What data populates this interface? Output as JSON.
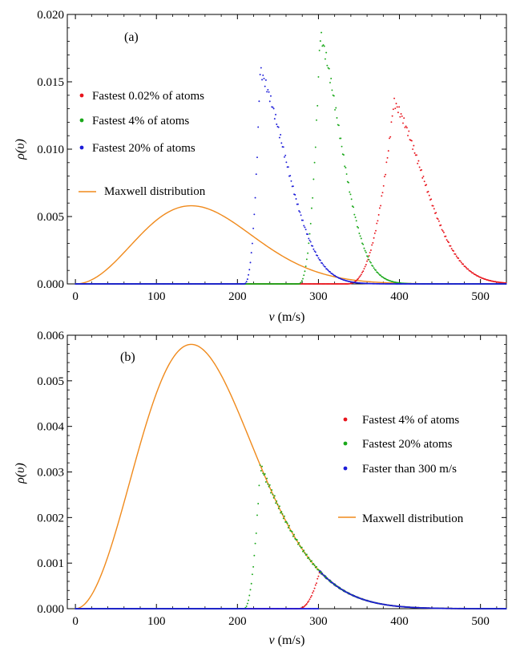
{
  "chart_data": [
    {
      "type": "scatter",
      "panel_label": "(a)",
      "xlabel_var": "v",
      "xlabel_unit": " (m/s)",
      "ylabel": "ρ(υ)",
      "xlim": [
        -10,
        532
      ],
      "ylim": [
        0,
        0.02
      ],
      "xticks": [
        0,
        100,
        200,
        300,
        400,
        500
      ],
      "yticks": [
        "0.000",
        "0.005",
        "0.010",
        "0.015",
        "0.020"
      ],
      "ytick_values": [
        0,
        0.005,
        0.01,
        0.015,
        0.02
      ],
      "legend_placement": "left",
      "maxwell": {
        "name": "Maxwell distribution",
        "color": "#f08a1c",
        "peak_v": 143,
        "peak_rho": 0.0058
      },
      "series": [
        {
          "name": "Fastest 0.02% of atoms",
          "color": "#e8141c",
          "onset": 335,
          "peak_v": 393,
          "peak_rho": 0.0135,
          "decay": 55
        },
        {
          "name": "Fastest 4% of atoms",
          "color": "#1aa81a",
          "onset": 275,
          "peak_v": 302,
          "peak_rho": 0.0185,
          "decay": 38
        },
        {
          "name": "Fastest 20% of atoms",
          "color": "#1c1cd8",
          "onset": 208,
          "peak_v": 228,
          "peak_rho": 0.0158,
          "decay": 48
        }
      ]
    },
    {
      "type": "scatter",
      "panel_label": "(b)",
      "xlabel_var": "v",
      "xlabel_unit": " (m/s)",
      "ylabel": "ρ(υ)",
      "xlim": [
        -10,
        532
      ],
      "ylim": [
        0,
        0.006
      ],
      "xticks": [
        0,
        100,
        200,
        300,
        400,
        500
      ],
      "yticks": [
        "0.000",
        "0.001",
        "0.002",
        "0.003",
        "0.004",
        "0.005",
        "0.006"
      ],
      "ytick_values": [
        0,
        0.001,
        0.002,
        0.003,
        0.004,
        0.005,
        0.006
      ],
      "legend_placement": "right",
      "maxwell": {
        "name": "Maxwell distribution",
        "color": "#f08a1c",
        "peak_v": 143,
        "peak_rho": 0.0058
      },
      "series": [
        {
          "name": "Fastest 4% of atoms",
          "color": "#e8141c",
          "onset": 275,
          "peak_v": 302,
          "peak_rho": 0.00085,
          "follow": "maxwell"
        },
        {
          "name": "Fastest 20% atoms",
          "color": "#1aa81a",
          "onset": 208,
          "peak_v": 228,
          "peak_rho": 0.0031,
          "follow": "maxwell"
        },
        {
          "name": "Faster than 300 m/s",
          "color": "#1c1cd8",
          "onset": 300,
          "peak_v": 300,
          "peak_rho": 0.00082,
          "follow": "maxwell"
        }
      ]
    }
  ]
}
